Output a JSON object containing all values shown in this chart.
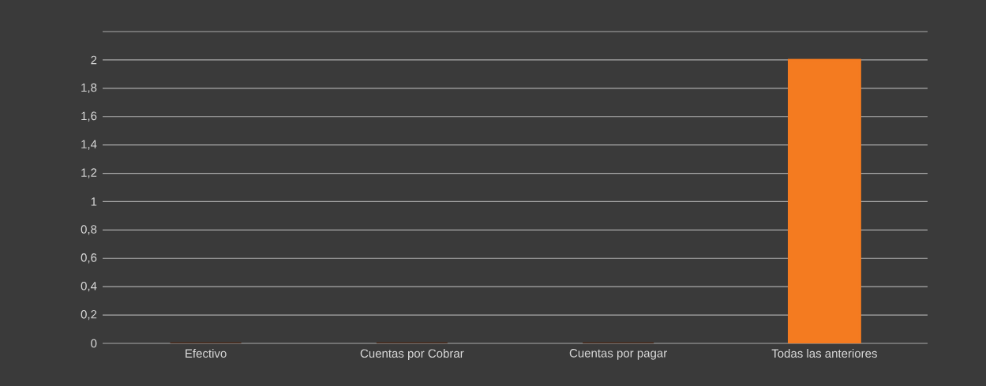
{
  "chart_data": {
    "type": "bar",
    "categories": [
      "Efectivo",
      "Cuentas por Cobrar",
      "Cuentas por pagar",
      "Todas las anteriores"
    ],
    "values": [
      0,
      0,
      0,
      2
    ],
    "colors": [
      "#4a2a1a",
      "#4a2a1a",
      "#4a2a1a",
      "#f47b20"
    ],
    "ylim": [
      0,
      2.2
    ],
    "yticks": [
      0,
      {
        "value": 0.2,
        "label": "0,2"
      },
      {
        "value": 0.4,
        "label": "0,4"
      },
      {
        "value": 0.6,
        "label": "0,6"
      },
      {
        "value": 0.8,
        "label": "0,8"
      },
      1,
      {
        "value": 1.2,
        "label": "1,2"
      },
      {
        "value": 1.4,
        "label": "1,4"
      },
      {
        "value": 1.6,
        "label": "1,6"
      },
      {
        "value": 1.8,
        "label": "1,8"
      },
      2,
      {
        "value": 2.2,
        "label": null
      }
    ],
    "grid": "y"
  }
}
